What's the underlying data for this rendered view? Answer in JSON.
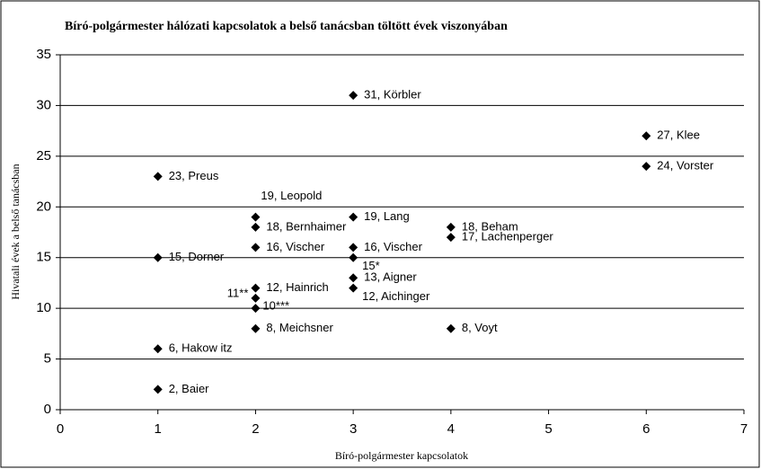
{
  "chart_data": {
    "type": "scatter",
    "title": "Bíró-polgármester hálózati kapcsolatok a belső tanácsban töltött évek viszonyában",
    "x_label": "Bíró-polgármester kapcsolatok",
    "y_label": "Hivatali évek a belső tanácsban",
    "x": [
      3,
      6,
      6,
      1,
      2,
      2,
      3,
      4,
      4,
      1,
      2,
      3,
      3,
      3,
      3,
      2,
      2,
      2,
      2,
      4,
      1,
      1
    ],
    "values": [
      31,
      27,
      24,
      23,
      19,
      18,
      19,
      18,
      17,
      15,
      16,
      16,
      15,
      13,
      12,
      12,
      11,
      10,
      8,
      8,
      6,
      2
    ],
    "point_labels": [
      "31, Körbler",
      "27, Klee",
      "24, Vorster",
      "23, Preus",
      "19, Leopold",
      "18, Bernhaimer",
      "19, Lang",
      "18, Beham",
      "17, Lachenperger",
      "15, Dorner",
      "16, Vischer",
      "16, Vischer",
      "15*",
      "13, Aigner",
      "12, Aichinger",
      "12, Hainrich",
      "11**",
      "10***",
      "8, Meichsner",
      "8, Voyt",
      "6, Hakow itz",
      "2, Baier"
    ],
    "color": "#000000",
    "xlim": [
      0,
      7
    ],
    "xticks": [
      0,
      1,
      2,
      3,
      4,
      5,
      6,
      7
    ],
    "ylim": [
      0,
      35
    ],
    "yticks": [
      0,
      5,
      10,
      15,
      20,
      25,
      30,
      35
    ],
    "grid": true
  }
}
